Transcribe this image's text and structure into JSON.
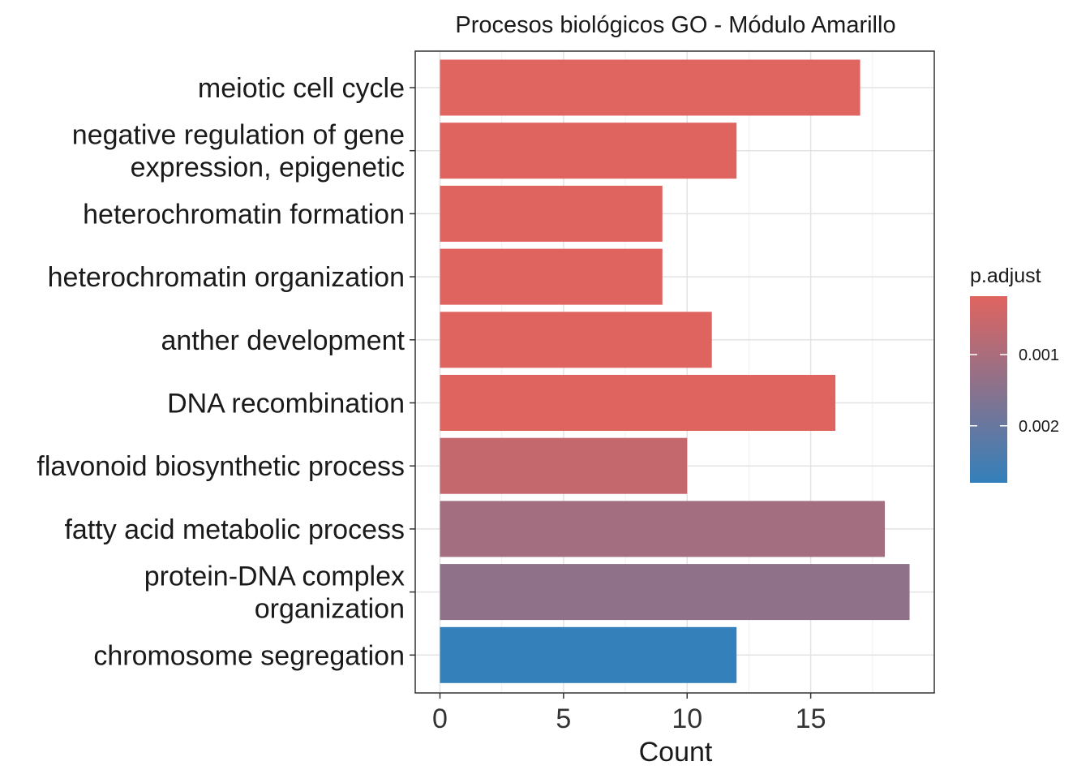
{
  "chart_data": {
    "type": "bar",
    "orientation": "horizontal",
    "title": "Procesos biológicos GO - Módulo Amarillo",
    "xlabel": "Count",
    "ylabel": "",
    "xlim": [
      -1,
      20
    ],
    "xticks": [
      0,
      5,
      10,
      15
    ],
    "grid": true,
    "legend_position": "right",
    "categories": [
      "meiotic cell cycle",
      "negative regulation of gene\nexpression, epigenetic",
      "heterochromatin formation",
      "heterochromatin organization",
      "anther development",
      "DNA recombination",
      "flavonoid biosynthetic process",
      "fatty acid metabolic process",
      "protein-DNA complex\norganization",
      "chromosome segregation"
    ],
    "values": [
      17,
      12,
      9,
      9,
      11,
      16,
      10,
      18,
      19,
      12
    ],
    "p_adjust": [
      0.00018,
      0.00019,
      0.0002,
      0.0002,
      0.0002,
      0.0002,
      0.0006,
      0.0011,
      0.0014,
      0.0028
    ],
    "legend": {
      "title": "p.adjust",
      "min": 0.00018,
      "max": 0.0028,
      "ticks": [
        0.001,
        0.002
      ],
      "tick_labels": [
        "0.001",
        "0.002"
      ],
      "color_low": "#E0645F",
      "color_high": "#3380BB"
    }
  }
}
